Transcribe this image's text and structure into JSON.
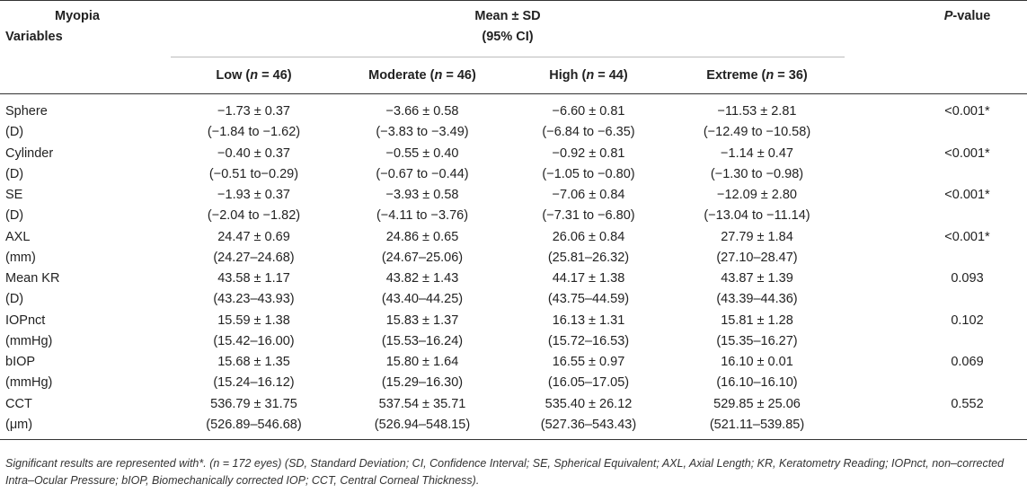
{
  "chart_data": {
    "type": "table",
    "header": {
      "corner_top": "Myopia",
      "corner_bottom": "Variables",
      "group_label_line1": "Mean ± SD",
      "group_label_line2": "(95% CI)",
      "pvalue_label": "P-value",
      "columns": [
        "Low (n = 46)",
        "Moderate (n = 46)",
        "High (n = 44)",
        "Extreme (n = 36)"
      ]
    },
    "rows": [
      {
        "name": "Sphere",
        "unit": "(D)",
        "cells": [
          {
            "mean": "−1.73 ± 0.37",
            "ci": "(−1.84 to −1.62)"
          },
          {
            "mean": "−3.66 ± 0.58",
            "ci": "(−3.83 to −3.49)"
          },
          {
            "mean": "−6.60 ± 0.81",
            "ci": "(−6.84 to −6.35)"
          },
          {
            "mean": "−11.53 ± 2.81",
            "ci": "(−12.49 to −10.58)"
          }
        ],
        "p": "<0.001*"
      },
      {
        "name": "Cylinder",
        "unit": "(D)",
        "cells": [
          {
            "mean": "−0.40 ± 0.37",
            "ci": "(−0.51 to−0.29)"
          },
          {
            "mean": "−0.55 ± 0.40",
            "ci": "(−0.67 to −0.44)"
          },
          {
            "mean": "−0.92 ± 0.81",
            "ci": "(−1.05 to −0.80)"
          },
          {
            "mean": "−1.14 ± 0.47",
            "ci": "(−1.30 to −0.98)"
          }
        ],
        "p": "<0.001*"
      },
      {
        "name": "SE",
        "unit": "(D)",
        "cells": [
          {
            "mean": "−1.93 ± 0.37",
            "ci": "(−2.04 to −1.82)"
          },
          {
            "mean": "−3.93 ± 0.58",
            "ci": "(−4.11 to −3.76)"
          },
          {
            "mean": "−7.06 ± 0.84",
            "ci": "(−7.31 to −6.80)"
          },
          {
            "mean": "−12.09 ± 2.80",
            "ci": "(−13.04 to −11.14)"
          }
        ],
        "p": "<0.001*"
      },
      {
        "name": "AXL",
        "unit": "(mm)",
        "cells": [
          {
            "mean": "24.47 ± 0.69",
            "ci": "(24.27–24.68)"
          },
          {
            "mean": "24.86 ± 0.65",
            "ci": "(24.67–25.06)"
          },
          {
            "mean": "26.06 ± 0.84",
            "ci": "(25.81–26.32)"
          },
          {
            "mean": "27.79 ± 1.84",
            "ci": "(27.10–28.47)"
          }
        ],
        "p": "<0.001*"
      },
      {
        "name": "Mean KR",
        "unit": "(D)",
        "cells": [
          {
            "mean": "43.58 ± 1.17",
            "ci": "(43.23–43.93)"
          },
          {
            "mean": "43.82 ± 1.43",
            "ci": "(43.40–44.25)"
          },
          {
            "mean": "44.17 ± 1.38",
            "ci": "(43.75–44.59)"
          },
          {
            "mean": "43.87 ± 1.39",
            "ci": "(43.39–44.36)"
          }
        ],
        "p": "0.093"
      },
      {
        "name": "IOPnct",
        "unit": "(mmHg)",
        "cells": [
          {
            "mean": "15.59 ± 1.38",
            "ci": "(15.42–16.00)"
          },
          {
            "mean": "15.83 ± 1.37",
            "ci": "(15.53–16.24)"
          },
          {
            "mean": "16.13 ± 1.31",
            "ci": "(15.72–16.53)"
          },
          {
            "mean": "15.81 ± 1.28",
            "ci": "(15.35–16.27)"
          }
        ],
        "p": "0.102"
      },
      {
        "name": "bIOP",
        "unit": "(mmHg)",
        "cells": [
          {
            "mean": "15.68 ± 1.35",
            "ci": "(15.24–16.12)"
          },
          {
            "mean": "15.80 ± 1.64",
            "ci": "(15.29–16.30)"
          },
          {
            "mean": "16.55 ± 0.97",
            "ci": "(16.05–17.05)"
          },
          {
            "mean": "16.10 ± 0.01",
            "ci": "(16.10–16.10)"
          }
        ],
        "p": "0.069"
      },
      {
        "name": "CCT",
        "unit": "(μm)",
        "cells": [
          {
            "mean": "536.79 ± 31.75",
            "ci": "(526.89–546.68)"
          },
          {
            "mean": "537.54 ± 35.71",
            "ci": "(526.94–548.15)"
          },
          {
            "mean": "535.40 ± 26.12",
            "ci": "(527.36–543.43)"
          },
          {
            "mean": "529.85 ± 25.06",
            "ci": "(521.11–539.85)"
          }
        ],
        "p": "0.552"
      }
    ],
    "footnote": "Significant results are represented with*. (n = 172 eyes) (SD, Standard Deviation; CI, Confidence Interval; SE, Spherical Equivalent; AXL, Axial Length; KR, Keratometry Reading; IOPnct, non–corrected Intra–Ocular Pressure; bIOP, Biomechanically corrected IOP; CCT, Central Corneal Thickness)."
  }
}
